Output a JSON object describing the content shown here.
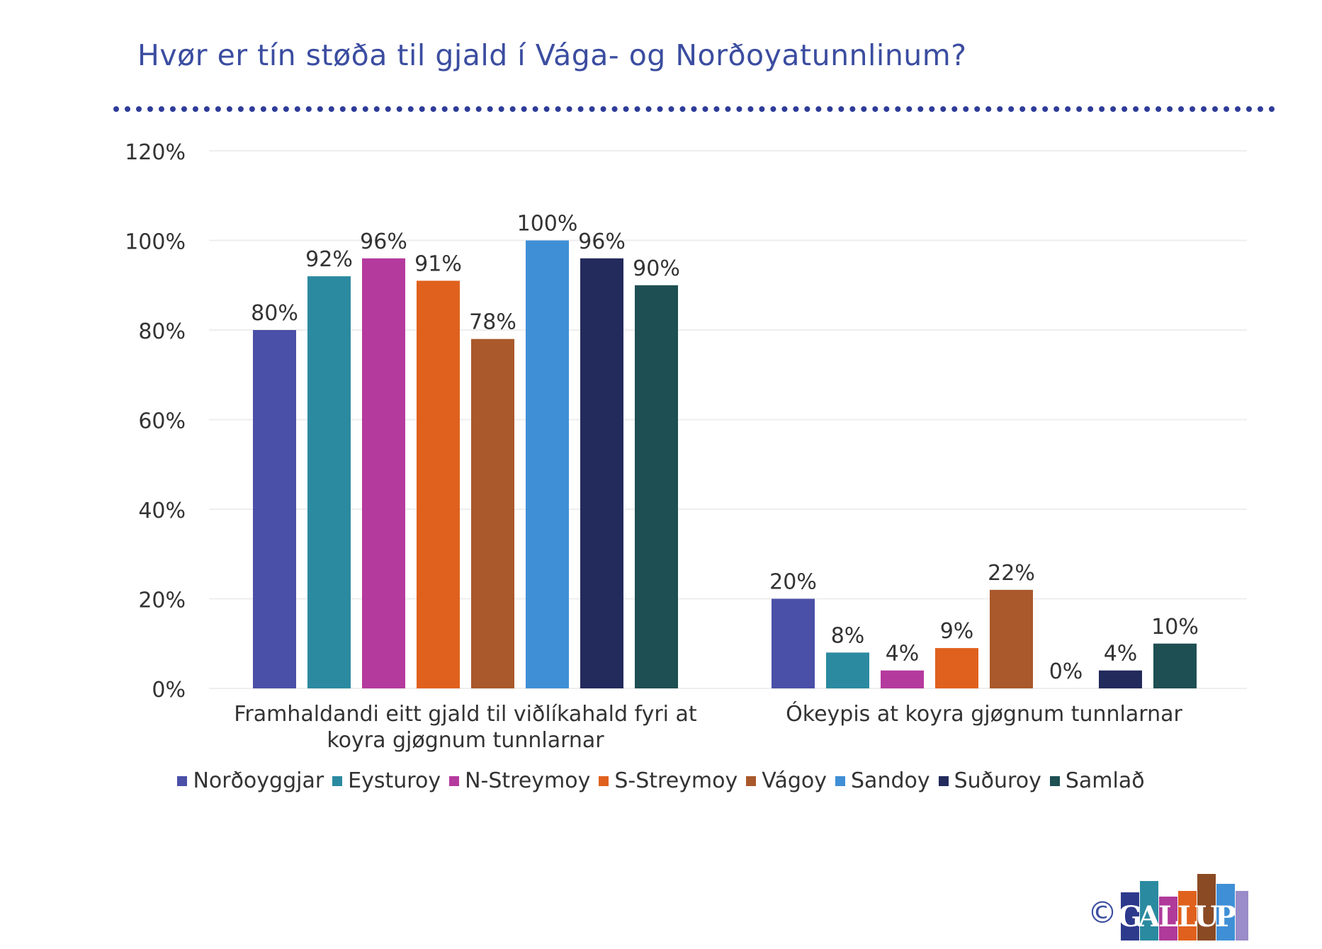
{
  "title": "Hvør er tín støða til gjald í Vága- og Norðoyatunnlinum?",
  "chart_data": {
    "type": "bar",
    "title": "Hvør er tín støða til gjald í Vága- og Norðoyatunnlinum?",
    "xlabel": "",
    "ylabel": "",
    "ylim": [
      0,
      120
    ],
    "yticks": [
      0,
      20,
      40,
      60,
      80,
      100,
      120
    ],
    "ytick_labels": [
      "0%",
      "20%",
      "40%",
      "60%",
      "80%",
      "100%",
      "120%"
    ],
    "grid": true,
    "legend_position": "bottom",
    "categories": [
      [
        "Framhaldandi eitt gjald til viðlíkahald fyri at",
        "koyra gjøgnum tunnlarnar"
      ],
      [
        "Ókeypis at koyra gjøgnum tunnlarnar"
      ]
    ],
    "series": [
      {
        "name": "Norðoyggjar",
        "color": "#4a4fa8",
        "values": [
          80,
          20
        ],
        "labels": [
          "80%",
          "20%"
        ]
      },
      {
        "name": "Eysturoy",
        "color": "#2b8aa0",
        "values": [
          92,
          8
        ],
        "labels": [
          "92%",
          "8%"
        ]
      },
      {
        "name": "N-Streymoy",
        "color": "#b53a9e",
        "values": [
          96,
          4
        ],
        "labels": [
          "96%",
          "4%"
        ]
      },
      {
        "name": "S-Streymoy",
        "color": "#e0611e",
        "values": [
          91,
          9
        ],
        "labels": [
          "91%",
          "9%"
        ]
      },
      {
        "name": "Vágoy",
        "color": "#a9592b",
        "values": [
          78,
          22
        ],
        "labels": [
          "78%",
          "22%"
        ]
      },
      {
        "name": "Sandoy",
        "color": "#3f8fd6",
        "values": [
          100,
          0
        ],
        "labels": [
          "100%",
          "0%"
        ]
      },
      {
        "name": "Suðuroy",
        "color": "#232a5c",
        "values": [
          96,
          4
        ],
        "labels": [
          "96%",
          "4%"
        ]
      },
      {
        "name": "Samlað",
        "color": "#1e4f52",
        "values": [
          90,
          10
        ],
        "labels": [
          "90%",
          "10%"
        ]
      }
    ]
  },
  "footer": {
    "copyright_symbol": "©",
    "logo_letters": [
      "G",
      "A",
      "L",
      "L",
      "U",
      "P"
    ],
    "logo_colors": [
      "#2d3a8c",
      "#2a8aa0",
      "#b03a9a",
      "#e0611e",
      "#8a4a24",
      "#3f8fd6",
      "#9a8cc8"
    ]
  }
}
